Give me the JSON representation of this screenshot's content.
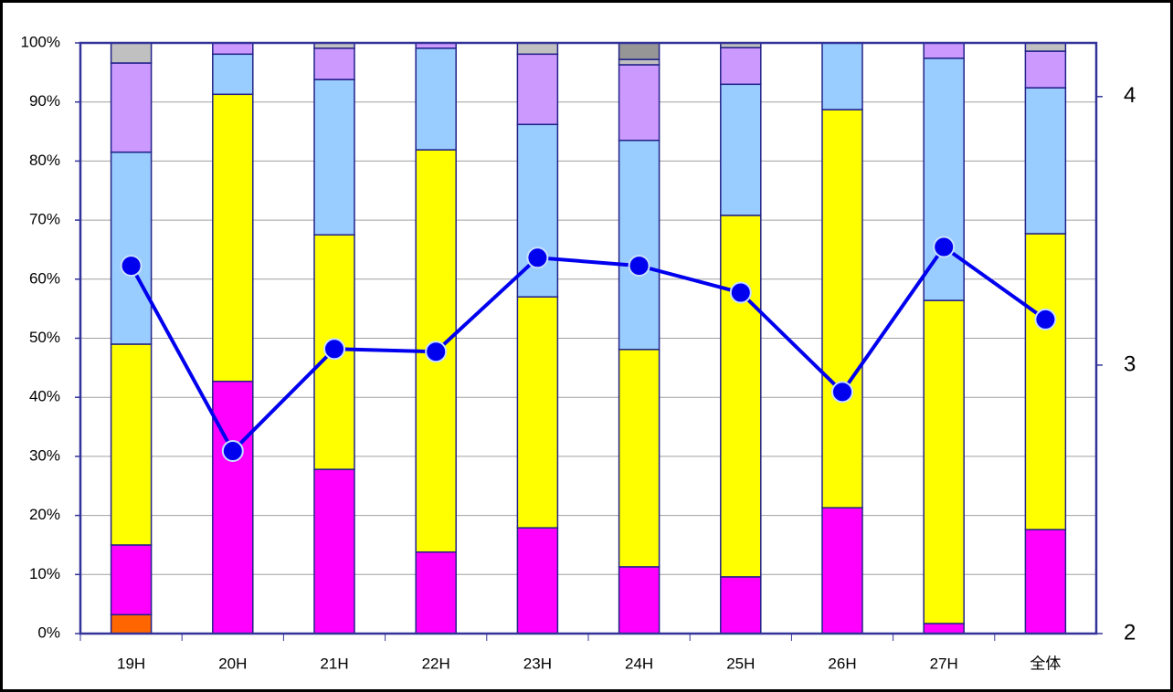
{
  "chart_data": {
    "type": "bar",
    "categories": [
      "19H",
      "20H",
      "21H",
      "22H",
      "23H",
      "24H",
      "25H",
      "26H",
      "27H",
      "全体"
    ],
    "stacked": true,
    "ylim": [
      0,
      100
    ],
    "yticks": [
      {
        "value": 0,
        "label": "0%"
      },
      {
        "value": 10,
        "label": "10%"
      },
      {
        "value": 20,
        "label": "20%"
      },
      {
        "value": 30,
        "label": "30%"
      },
      {
        "value": 40,
        "label": "40%"
      },
      {
        "value": 50,
        "label": "50%"
      },
      {
        "value": 60,
        "label": "60%"
      },
      {
        "value": 70,
        "label": "70%"
      },
      {
        "value": 80,
        "label": "80%"
      },
      {
        "value": 90,
        "label": "90%"
      },
      {
        "value": 100,
        "label": "100%"
      }
    ],
    "y2lim": [
      2,
      4.2
    ],
    "y2ticks": [
      2,
      3,
      4
    ],
    "grid": true,
    "series": [
      {
        "color": "#ff6600",
        "values": [
          3.2,
          0,
          0,
          0,
          0,
          0,
          0,
          0,
          0,
          0
        ]
      },
      {
        "color": "#ff00ff",
        "values": [
          11.8,
          42.7,
          27.8,
          13.8,
          17.9,
          11.3,
          9.6,
          21.3,
          1.7,
          17.6
        ]
      },
      {
        "color": "#ffff00",
        "values": [
          34.0,
          48.6,
          39.7,
          68.1,
          39.1,
          36.8,
          61.2,
          67.4,
          54.7,
          50.1
        ]
      },
      {
        "color": "#99ccff",
        "values": [
          32.5,
          6.8,
          26.3,
          17.2,
          29.2,
          35.4,
          22.2,
          11.3,
          41.0,
          24.7
        ]
      },
      {
        "color": "#cc99ff",
        "values": [
          15.1,
          1.9,
          5.3,
          0.9,
          11.9,
          12.8,
          6.2,
          0,
          2.6,
          6.2
        ]
      },
      {
        "color": "#c0c0c0",
        "values": [
          3.4,
          0,
          0.9,
          0,
          1.9,
          0.9,
          0.8,
          0,
          0,
          1.4
        ]
      },
      {
        "color": "#969696",
        "values": [
          0,
          0,
          0,
          0,
          0,
          2.8,
          0,
          0,
          0,
          0
        ]
      },
      {
        "type": "line",
        "axis": "y2",
        "color": "#0000ee",
        "values": [
          3.37,
          2.68,
          3.06,
          3.05,
          3.4,
          3.37,
          3.27,
          2.9,
          3.44,
          3.17
        ]
      }
    ]
  }
}
